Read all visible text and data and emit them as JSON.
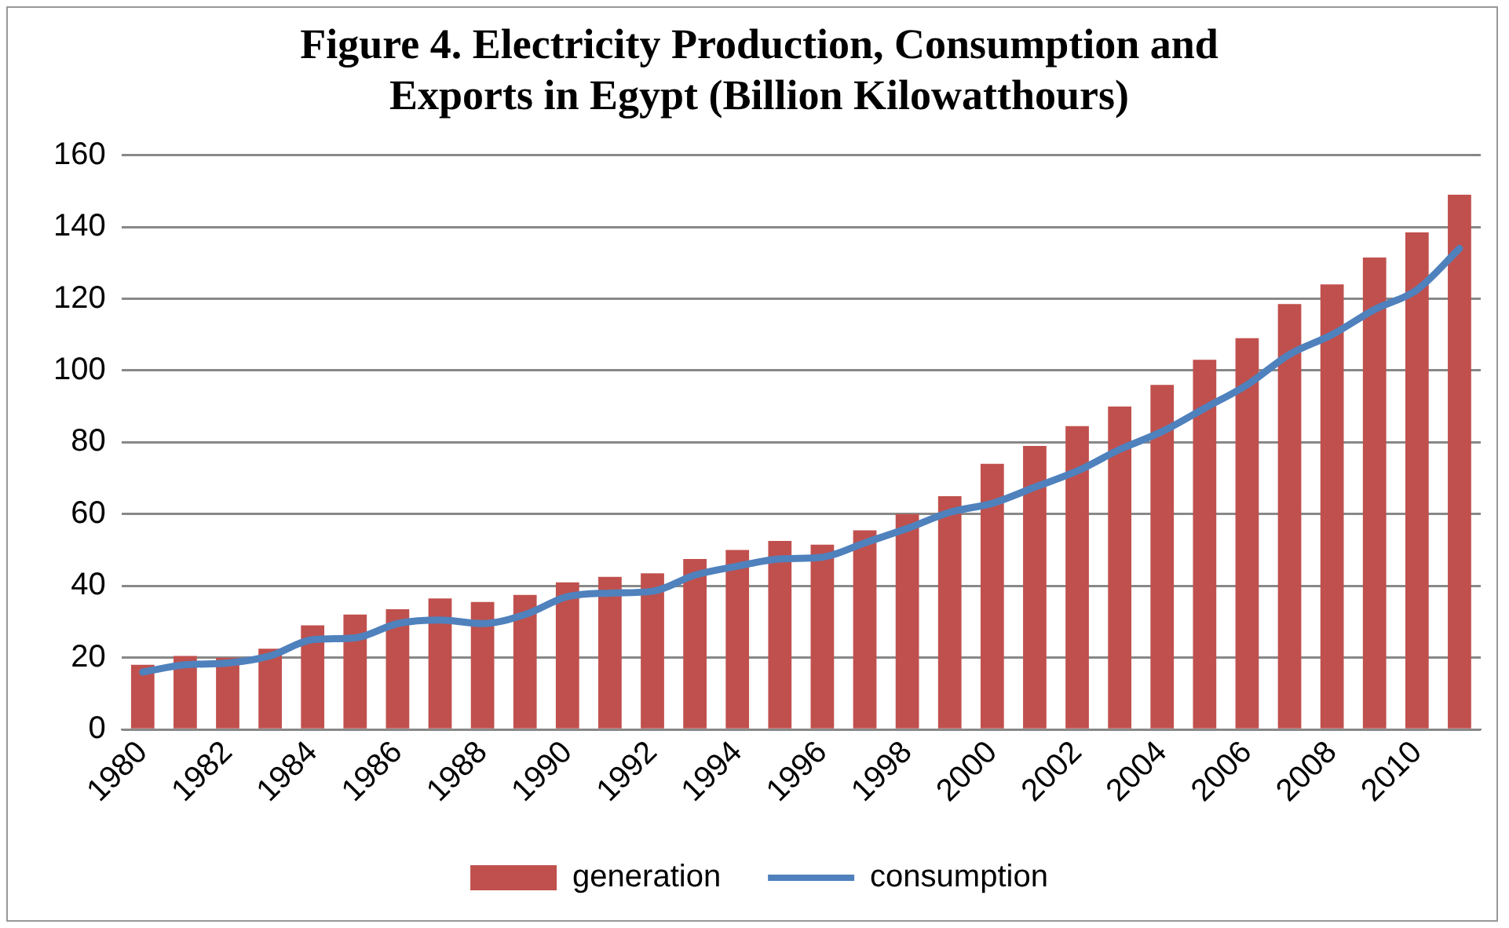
{
  "chart_data": {
    "type": "bar",
    "title": [
      "Figure 4. Electricity Production, Consumption and",
      "Exports in Egypt (Billion Kilowatthours)"
    ],
    "categories": [
      "1980",
      null,
      "1982",
      null,
      "1984",
      null,
      "1986",
      null,
      "1988",
      null,
      "1990",
      null,
      "1992",
      null,
      "1994",
      null,
      "1996",
      null,
      "1998",
      null,
      "2000",
      null,
      "2002",
      null,
      "2004",
      null,
      "2006",
      null,
      "2008",
      null,
      "2010",
      null
    ],
    "series": [
      {
        "name": "generation",
        "color": "#c0504d",
        "values": [
          18,
          20.5,
          20,
          22.5,
          29,
          32,
          33.5,
          36.5,
          35.5,
          37.5,
          41,
          42.5,
          43.5,
          47.5,
          50,
          52.5,
          51.5,
          55.5,
          60,
          65,
          74,
          79,
          84.5,
          90,
          96,
          103,
          109,
          118.5,
          124,
          131.5,
          138.5,
          149
        ]
      },
      {
        "name": "consumption",
        "type": "line",
        "color": "#4f81bd",
        "values": [
          16,
          18,
          18.5,
          20.5,
          25,
          25.5,
          29.5,
          30.5,
          29.5,
          32,
          37,
          38,
          38.5,
          43,
          45.5,
          47.5,
          48,
          52,
          56,
          60.5,
          63,
          67.5,
          72,
          78,
          83,
          89.5,
          96,
          104.5,
          110,
          117,
          122.5,
          134
        ]
      }
    ],
    "ylim": [
      0,
      160
    ],
    "yticks": [
      0,
      20,
      40,
      60,
      80,
      100,
      120,
      140,
      160
    ],
    "grid": "y",
    "legend": "bottom",
    "marker": "none"
  }
}
